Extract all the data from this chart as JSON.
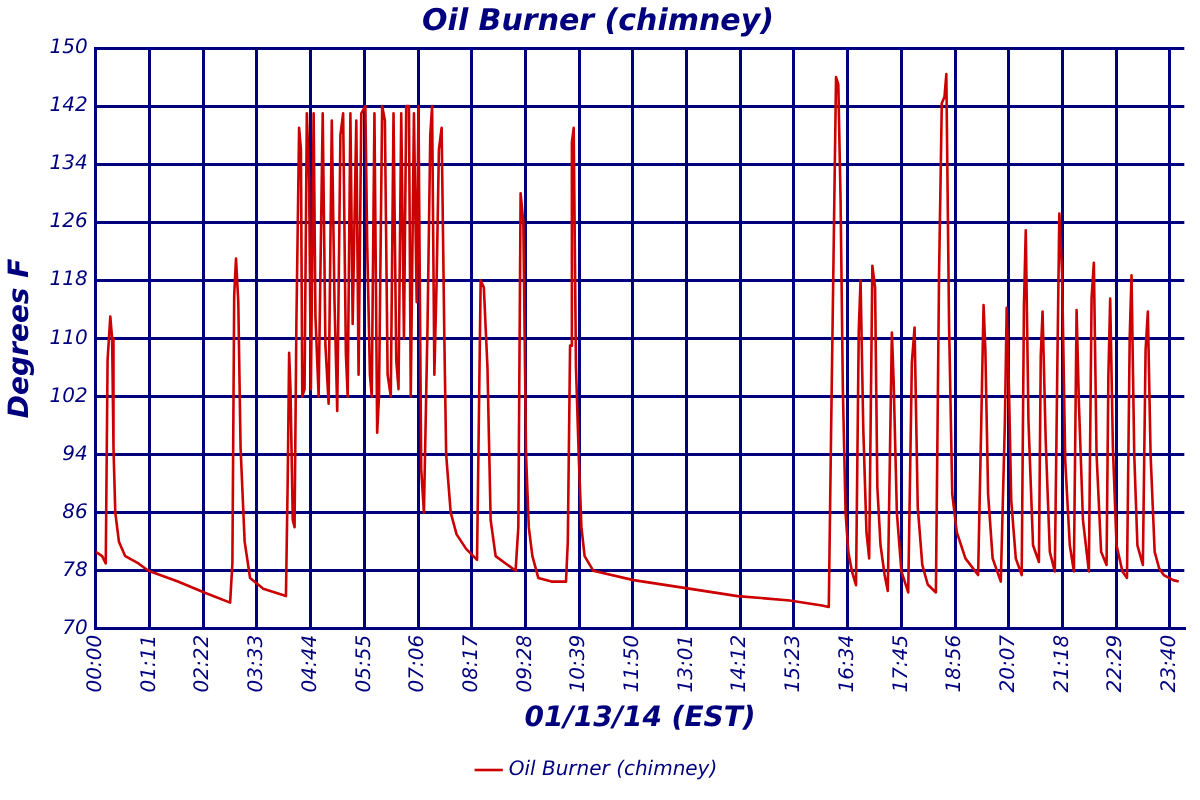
{
  "chart_data": {
    "type": "line",
    "title": "Oil Burner (chimney)",
    "xlabel": "01/13/14 (EST)",
    "ylabel": "Degrees F",
    "xlim": [
      0,
      23.9833
    ],
    "ylim": [
      70,
      150
    ],
    "xticks": [
      {
        "value": 0,
        "label": "00:00"
      },
      {
        "value": 1.1833,
        "label": "01:11"
      },
      {
        "value": 2.3667,
        "label": "02:22"
      },
      {
        "value": 3.55,
        "label": "03:33"
      },
      {
        "value": 4.7333,
        "label": "04:44"
      },
      {
        "value": 5.9167,
        "label": "05:55"
      },
      {
        "value": 7.1,
        "label": "07:06"
      },
      {
        "value": 8.2833,
        "label": "08:17"
      },
      {
        "value": 9.4667,
        "label": "09:28"
      },
      {
        "value": 10.65,
        "label": "10:39"
      },
      {
        "value": 11.8333,
        "label": "11:50"
      },
      {
        "value": 13.0167,
        "label": "13:01"
      },
      {
        "value": 14.2,
        "label": "14:12"
      },
      {
        "value": 15.3833,
        "label": "15:23"
      },
      {
        "value": 16.5667,
        "label": "16:34"
      },
      {
        "value": 17.75,
        "label": "17:45"
      },
      {
        "value": 18.9333,
        "label": "18:56"
      },
      {
        "value": 20.1167,
        "label": "20:07"
      },
      {
        "value": 21.3,
        "label": "21:18"
      },
      {
        "value": 22.4833,
        "label": "22:29"
      },
      {
        "value": 23.6667,
        "label": "23:40"
      }
    ],
    "yticks": [
      70,
      78,
      86,
      94,
      102,
      110,
      118,
      126,
      134,
      142,
      150
    ],
    "grid": true,
    "legend": "bottom",
    "marker": "none",
    "line_style": "solid",
    "series": [
      {
        "name": "Oil Burner (chimney)",
        "color": "#cc0000",
        "x": [
          0,
          0.14,
          0.22,
          0.26,
          0.32,
          0.36,
          0.39,
          0.43,
          0.51,
          0.65,
          0.94,
          1.16,
          1.81,
          2.39,
          2.96,
          3.01,
          3.05,
          3.09,
          3.14,
          3.19,
          3.28,
          3.4,
          3.69,
          4.19,
          4.23,
          4.26,
          4.29,
          4.34,
          4.38,
          4.42,
          4.48,
          4.52,
          4.55,
          4.6,
          4.65,
          4.7,
          4.74,
          4.8,
          4.84,
          4.91,
          5,
          5.06,
          5.13,
          5.2,
          5.26,
          5.32,
          5.39,
          5.45,
          5.51,
          5.55,
          5.61,
          5.66,
          5.74,
          5.79,
          5.85,
          5.94,
          5.98,
          6.04,
          6.08,
          6.14,
          6.2,
          6.24,
          6.31,
          6.37,
          6.43,
          6.5,
          6.56,
          6.62,
          6.67,
          6.73,
          6.79,
          6.84,
          6.9,
          6.94,
          7.01,
          7.07,
          7.11,
          7.17,
          7.23,
          7.31,
          7.37,
          7.41,
          7.46,
          7.51,
          7.56,
          7.62,
          7.68,
          7.72,
          7.82,
          7.95,
          8.16,
          8.4,
          8.48,
          8.55,
          8.63,
          8.7,
          8.81,
          9.03,
          9.25,
          9.31,
          9.36,
          9.42,
          9.48,
          9.54,
          9.62,
          9.75,
          10.04,
          10.36,
          10.4,
          10.45,
          10.49,
          10.53,
          10.58,
          10.64,
          10.7,
          10.77,
          10.96,
          11.85,
          13,
          14.14,
          15.29,
          16,
          16.15,
          16.2,
          16.25,
          16.31,
          16.36,
          16.41,
          16.46,
          16.52,
          16.58,
          16.66,
          16.75,
          16.81,
          16.85,
          16.91,
          16.98,
          17.04,
          17.11,
          17.17,
          17.22,
          17.29,
          17.38,
          17.45,
          17.54,
          17.58,
          17.65,
          17.75,
          17.9,
          17.98,
          18.04,
          18.11,
          18.21,
          18.33,
          18.51,
          18.58,
          18.64,
          18.7,
          18.74,
          18.8,
          18.87,
          18.97,
          19.16,
          19.44,
          19.51,
          19.56,
          19.6,
          19.66,
          19.76,
          19.94,
          20.03,
          20.07,
          20.12,
          20.17,
          20.27,
          20.4,
          20.45,
          20.49,
          20.55,
          20.65,
          20.78,
          20.82,
          20.86,
          20.93,
          21.02,
          21.13,
          21.19,
          21.23,
          21.29,
          21.36,
          21.46,
          21.55,
          21.61,
          21.66,
          21.75,
          21.88,
          21.94,
          21.99,
          22.05,
          22.15,
          22.27,
          22.31,
          22.35,
          22.41,
          22.49,
          22.62,
          22.72,
          22.78,
          22.82,
          22.88,
          22.95,
          23.07,
          23.13,
          23.18,
          23.24,
          23.33,
          23.43,
          23.53,
          23.74,
          23.86
        ],
        "values": [
          80.6,
          80,
          79,
          107,
          113,
          110,
          95,
          86,
          82,
          80,
          79,
          78,
          76.5,
          75,
          73.6,
          79,
          116,
          121,
          115,
          95,
          82,
          77,
          75.5,
          74.5,
          91,
          108,
          103,
          85,
          84,
          112,
          139,
          136,
          102,
          103,
          141,
          132,
          103,
          141,
          113,
          102,
          141,
          109,
          101,
          140,
          115,
          100,
          138,
          141,
          108,
          102,
          141,
          112,
          140,
          105,
          141,
          142,
          123,
          105,
          102,
          141,
          97,
          102,
          142,
          140,
          105,
          102,
          141,
          107,
          103,
          141,
          110,
          142,
          142,
          102,
          141,
          115,
          142,
          92,
          86,
          112,
          138,
          142,
          105,
          118,
          136,
          139,
          110,
          94,
          86,
          83,
          81,
          79.5,
          118,
          117,
          106,
          85,
          80,
          79,
          78,
          84,
          130,
          126,
          94,
          84,
          80,
          77,
          76.5,
          76.5,
          82,
          109,
          137,
          139,
          106,
          94,
          84,
          80,
          78,
          76.7,
          75.6,
          74.5,
          73.9,
          73.2,
          73,
          96.7,
          119,
          146,
          145,
          129,
          103,
          86,
          80.6,
          77.9,
          76,
          111,
          118,
          97.6,
          83.3,
          79.7,
          120,
          117,
          89.5,
          81.5,
          77.4,
          75.2,
          110.8,
          103.9,
          86,
          77.9,
          75,
          106.6,
          111.5,
          86.8,
          78.8,
          76.1,
          75,
          119,
          142.4,
          143.3,
          146.4,
          111.9,
          88.6,
          83.3,
          79.7,
          77.4,
          98.5,
          114.6,
          108.4,
          88.6,
          79.7,
          76.5,
          98.5,
          114.2,
          103,
          87.7,
          79.7,
          77.4,
          114.6,
          124.9,
          98.5,
          81.5,
          79.2,
          107.5,
          113.7,
          95.8,
          80.6,
          77.9,
          108.4,
          127.2,
          119,
          93.1,
          81.5,
          77.9,
          113.9,
          101.2,
          85,
          77.9,
          115.5,
          120.4,
          94,
          80.6,
          78.8,
          104.8,
          115.5,
          94.9,
          81.5,
          77.9,
          77,
          110.1,
          118.7,
          94,
          81.5,
          78.8,
          108.4,
          113.7,
          94,
          80.6,
          78.3,
          77.4,
          76.7,
          76.5
        ]
      }
    ]
  }
}
